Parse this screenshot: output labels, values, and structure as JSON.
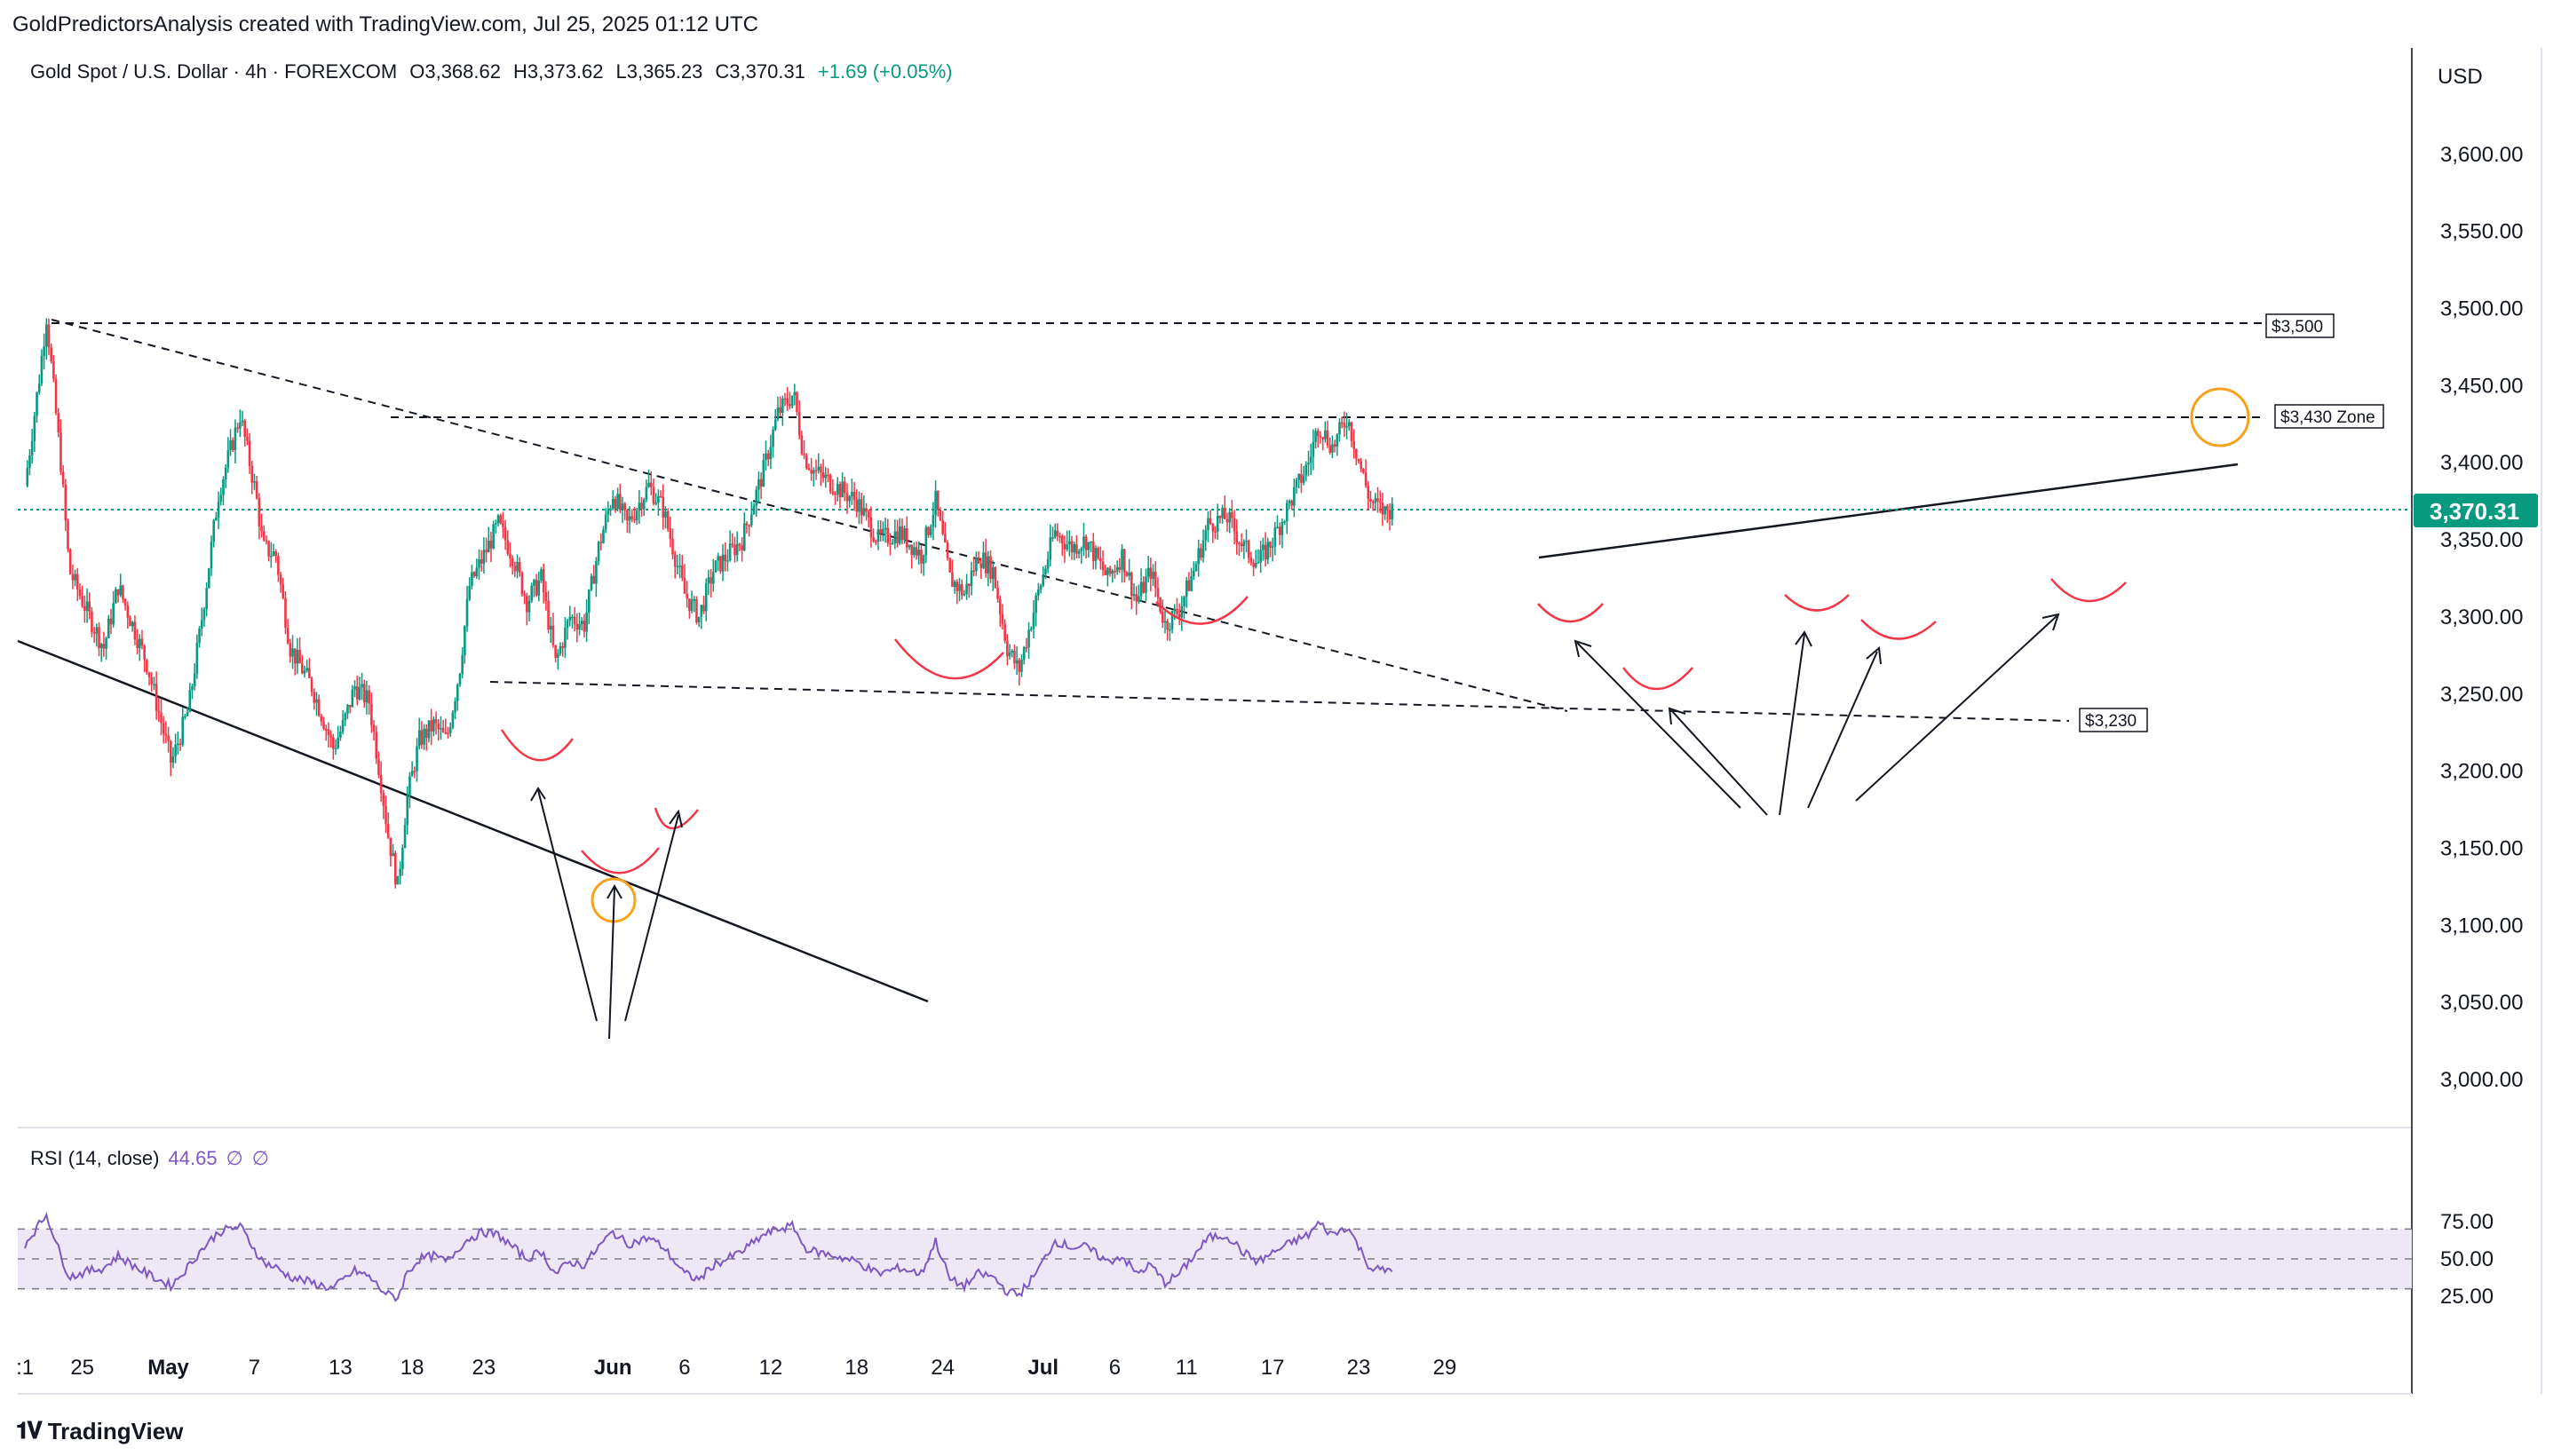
{
  "header": {
    "attribution": "GoldPredictorsAnalysis created with TradingView.com, Jul 25, 2025 01:12 UTC"
  },
  "legend": {
    "symbol": "Gold Spot / U.S. Dollar · 4h · FOREXCOM",
    "open": "O3,368.62",
    "high": "H3,373.62",
    "low": "L3,365.23",
    "close": "C3,370.31",
    "change": "+1.69 (+0.05%)"
  },
  "rsi_legend": {
    "label": "RSI (14, close)",
    "value": "44.65",
    "extra1": "∅",
    "extra2": "∅"
  },
  "footer": {
    "brand": "TradingView",
    "logo_icon": "tradingview-logo-icon"
  },
  "colors": {
    "up": "#089981",
    "down": "#f23645",
    "rsi": "#7e57c2",
    "rsi_band": "#ede7f6",
    "price_line": "#089981",
    "arc": "#f23645",
    "circle": "#f7a21b"
  },
  "chart_data": [
    {
      "type": "candlestick",
      "currency": "USD",
      "ylim": [
        2960,
        3660
      ],
      "yticks": [
        "3,000.00",
        "3,050.00",
        "3,100.00",
        "3,150.00",
        "3,200.00",
        "3,250.00",
        "3,300.00",
        "3,350.00",
        "3,400.00",
        "3,450.00",
        "3,500.00",
        "3,550.00",
        "3,600.00"
      ],
      "ytick_values": [
        3000,
        3050,
        3100,
        3150,
        3200,
        3250,
        3300,
        3350,
        3400,
        3450,
        3500,
        3550,
        3600
      ],
      "xticks": [
        ":1",
        "25",
        "May",
        "7",
        "13",
        "18",
        "23",
        "Jun",
        "6",
        "12",
        "18",
        "24",
        "Jul",
        "6",
        "11",
        "17",
        "23",
        "29"
      ],
      "xtick_days": [
        0,
        4,
        10,
        16,
        22,
        27,
        32,
        41,
        46,
        52,
        58,
        64,
        71,
        76,
        81,
        87,
        93,
        99
      ],
      "price_axis_days": 0.5,
      "last_price": 3370.31,
      "last_price_label": "3,370.31",
      "path_days": [
        0,
        1.0,
        1.5,
        2.5,
        3.1,
        4.5,
        5.5,
        6.5,
        8.5,
        10.2,
        11.4,
        12.2,
        13.5,
        15.0,
        16.1,
        16.6,
        17.5,
        18.5,
        20.0,
        21.5,
        22.2,
        23.0,
        24.0,
        24.8,
        25.3,
        26.0,
        26.6,
        27.5,
        28.5,
        29.4,
        30.3,
        31.0,
        32.0,
        33.0,
        34.0,
        35.0,
        36.0,
        37.0,
        38.0,
        39.0,
        40.0,
        41.0,
        42.0,
        43.5,
        44.5,
        46.0,
        47.0,
        48.0,
        49.0,
        50.0,
        51.5,
        52.5,
        53.6,
        54.3,
        55.0,
        56.5,
        58.0,
        59.5,
        61.0,
        62.5,
        63.5,
        64.5,
        65.5,
        66.5,
        67.5,
        68.5,
        69.3,
        70.5,
        71.8,
        73.0,
        74.0,
        75.5,
        76.5,
        77.5,
        78.5,
        79.5,
        80.5,
        81.5,
        82.5,
        83.8,
        85.0,
        86.0,
        87.0,
        88.5,
        89.5,
        90.2,
        91.2,
        92.2,
        92.9,
        93.8,
        94.8,
        95.3
      ],
      "path_close": [
        3385,
        3455,
        3495,
        3400,
        3330,
        3300,
        3280,
        3320,
        3270,
        3205,
        3240,
        3290,
        3380,
        3431,
        3380,
        3345,
        3340,
        3280,
        3255,
        3215,
        3230,
        3255,
        3245,
        3195,
        3160,
        3125,
        3180,
        3220,
        3230,
        3220,
        3265,
        3320,
        3340,
        3360,
        3340,
        3310,
        3325,
        3270,
        3300,
        3295,
        3345,
        3380,
        3360,
        3385,
        3370,
        3315,
        3300,
        3330,
        3340,
        3350,
        3395,
        3432,
        3445,
        3405,
        3395,
        3385,
        3375,
        3350,
        3355,
        3340,
        3375,
        3325,
        3315,
        3340,
        3330,
        3280,
        3265,
        3310,
        3355,
        3345,
        3350,
        3325,
        3340,
        3310,
        3330,
        3295,
        3305,
        3330,
        3360,
        3365,
        3345,
        3335,
        3350,
        3380,
        3400,
        3425,
        3410,
        3430,
        3405,
        3375,
        3368,
        3370
      ]
    },
    {
      "type": "line",
      "name": "RSI (14, close)",
      "ylim": [
        20,
        85
      ],
      "yticks": [
        "25.00",
        "50.00",
        "75.00"
      ],
      "ytick_values": [
        25,
        50,
        75
      ],
      "bands": [
        30,
        50,
        70
      ],
      "x": [
        0,
        1,
        1.5,
        2.5,
        3.1,
        4.5,
        5.5,
        6.5,
        8.5,
        10.2,
        11.4,
        12.2,
        13.5,
        15.0,
        16.1,
        16.6,
        17.5,
        18.5,
        20.0,
        21.5,
        22.2,
        23.0,
        24.0,
        24.8,
        25.3,
        26.0,
        26.6,
        27.5,
        28.5,
        29.4,
        30.3,
        31.0,
        32.0,
        33.0,
        34.0,
        35.0,
        36.0,
        37.0,
        38.0,
        39.0,
        40.0,
        41.0,
        42.0,
        43.5,
        44.5,
        46.0,
        47.0,
        48.0,
        49.0,
        50.0,
        51.5,
        52.5,
        53.6,
        54.3,
        55.0,
        56.5,
        58.0,
        59.5,
        61.0,
        62.5,
        63.5,
        64.5,
        65.5,
        66.5,
        67.5,
        68.5,
        69.3,
        70.5,
        71.8,
        73.0,
        74.0,
        75.5,
        76.5,
        77.5,
        78.5,
        79.5,
        80.5,
        81.5,
        82.5,
        83.8,
        85.0,
        86.0,
        87.0,
        88.5,
        89.5,
        90.2,
        91.2,
        92.2,
        92.9,
        93.8,
        94.8,
        95.3
      ],
      "values": [
        60,
        73,
        80,
        52,
        38,
        42,
        44,
        52,
        40,
        32,
        45,
        55,
        68,
        72,
        55,
        48,
        44,
        38,
        34,
        30,
        36,
        42,
        38,
        30,
        26,
        24,
        40,
        50,
        52,
        48,
        58,
        64,
        68,
        66,
        58,
        50,
        55,
        40,
        48,
        46,
        58,
        68,
        60,
        64,
        58,
        40,
        36,
        46,
        50,
        55,
        66,
        70,
        72,
        58,
        55,
        52,
        48,
        40,
        44,
        40,
        62,
        36,
        32,
        40,
        38,
        28,
        26,
        40,
        62,
        58,
        58,
        48,
        52,
        40,
        46,
        34,
        40,
        52,
        64,
        66,
        54,
        48,
        54,
        62,
        66,
        74,
        66,
        72,
        60,
        44,
        42,
        44
      ]
    }
  ],
  "annotations": {
    "level_3500": "$3,500",
    "level_3430": "$3,430 Zone",
    "level_3230": "$3,230"
  }
}
